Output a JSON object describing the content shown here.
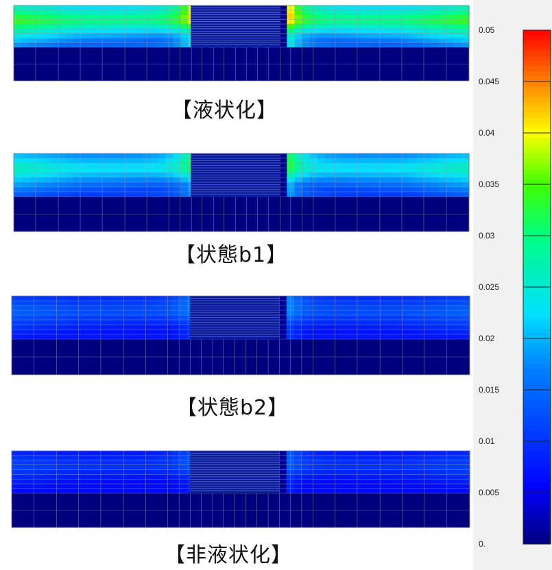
{
  "panels": [
    {
      "caption": "【液状化】",
      "intensity": 1.0
    },
    {
      "caption": "【状態b1】",
      "intensity": 0.78
    },
    {
      "caption": "【状態b2】",
      "intensity": 0.42
    },
    {
      "caption": "【非液状化】",
      "intensity": 0.34
    }
  ],
  "legend": {
    "ticks": [
      "0.05",
      "0.045",
      "0.04",
      "0.035",
      "0.03",
      "0.025",
      "0.02",
      "0.015",
      "0.01",
      "0.005",
      "0."
    ],
    "colors": [
      "#00007f",
      "#0000ff",
      "#0080ff",
      "#00e0ff",
      "#00ff80",
      "#40ff00",
      "#ffff00",
      "#ff8000",
      "#ff2000",
      "#ff0000"
    ]
  }
}
